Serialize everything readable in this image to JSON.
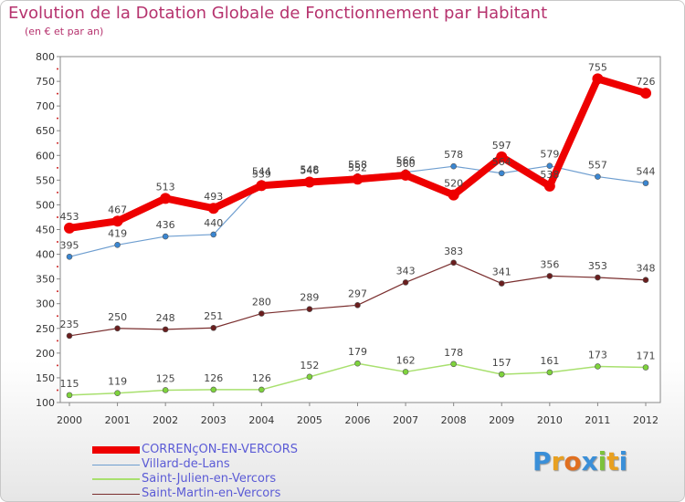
{
  "header": {
    "title": "Evolution de la Dotation Globale de Fonctionnement par Habitant",
    "subtitle": "(en € et par an)"
  },
  "chart_data": {
    "type": "line",
    "title": "Evolution de la Dotation Globale de Fonctionnement par Habitant",
    "subtitle": "(en € et par an)",
    "xlabel": "",
    "ylabel": "",
    "ylim": [
      100,
      800
    ],
    "y_ticks": [
      100,
      150,
      200,
      250,
      300,
      350,
      400,
      450,
      500,
      550,
      600,
      650,
      700,
      750,
      800
    ],
    "grid": false,
    "legend_position": "bottom-left",
    "x": [
      "2000",
      "2001",
      "2002",
      "2003",
      "2004",
      "2005",
      "2006",
      "2007",
      "2008",
      "2009",
      "2010",
      "2011",
      "2012"
    ],
    "series": [
      {
        "name": "CORRENçON-EN-VERCORS",
        "color": "#ee0000",
        "width": 8,
        "marker": "#ee0000",
        "values": [
          453,
          467,
          513,
          493,
          539,
          546,
          552,
          560,
          520,
          597,
          538,
          755,
          726
        ],
        "labels": [
          "453",
          "467",
          "513",
          "493",
          "539",
          "546",
          "552",
          "560",
          "520",
          "597",
          "538",
          "755",
          "726"
        ]
      },
      {
        "name": "Villard-de-Lans",
        "color": "#6e9ed0",
        "width": 1.2,
        "marker": "#3a86d1",
        "values": [
          395,
          419,
          436,
          440,
          544,
          548,
          558,
          566,
          578,
          564,
          579,
          557,
          544
        ],
        "labels": [
          "395",
          "419",
          "436",
          "440",
          "544",
          "548",
          "558",
          "566",
          "578",
          "564",
          "579",
          "557",
          "544"
        ]
      },
      {
        "name": "Saint-Julien-en-Vercors",
        "color": "#a8e06e",
        "width": 1.5,
        "marker": "#7ed33c",
        "values": [
          115,
          119,
          125,
          126,
          126,
          152,
          179,
          162,
          178,
          157,
          161,
          173,
          171
        ],
        "labels": [
          "115",
          "119",
          "125",
          "126",
          "126",
          "152",
          "179",
          "162",
          "178",
          "157",
          "161",
          "173",
          "171"
        ]
      },
      {
        "name": "Saint-Martin-en-Vercors",
        "color": "#7a2e2e",
        "width": 1.2,
        "marker": "#6a1e1e",
        "values": [
          235,
          250,
          248,
          251,
          280,
          289,
          297,
          343,
          383,
          341,
          356,
          353,
          348
        ],
        "labels": [
          "235",
          "250",
          "248",
          "251",
          "280",
          "289",
          "297",
          "343",
          "383",
          "341",
          "356",
          "353",
          "348"
        ]
      }
    ]
  },
  "legend": {
    "items": [
      {
        "label": "CORRENçON-EN-VERCORS",
        "color": "#ee0000",
        "thickness": 8
      },
      {
        "label": "Villard-de-Lans",
        "color": "#6e9ed0",
        "thickness": 1
      },
      {
        "label": "Saint-Julien-en-Vercors",
        "color": "#a8e06e",
        "thickness": 2
      },
      {
        "label": "Saint-Martin-en-Vercors",
        "color": "#7a2e2e",
        "thickness": 1
      }
    ]
  },
  "logo": {
    "text": "Proxiti",
    "letters": [
      "P",
      "r",
      "o",
      "x",
      "i",
      "t",
      "i"
    ],
    "colors": [
      "#3a8fd8",
      "#e8a020",
      "#e06f20",
      "#3a8fd8",
      "#7cc23c",
      "#e8a020",
      "#3a8fd8"
    ]
  }
}
